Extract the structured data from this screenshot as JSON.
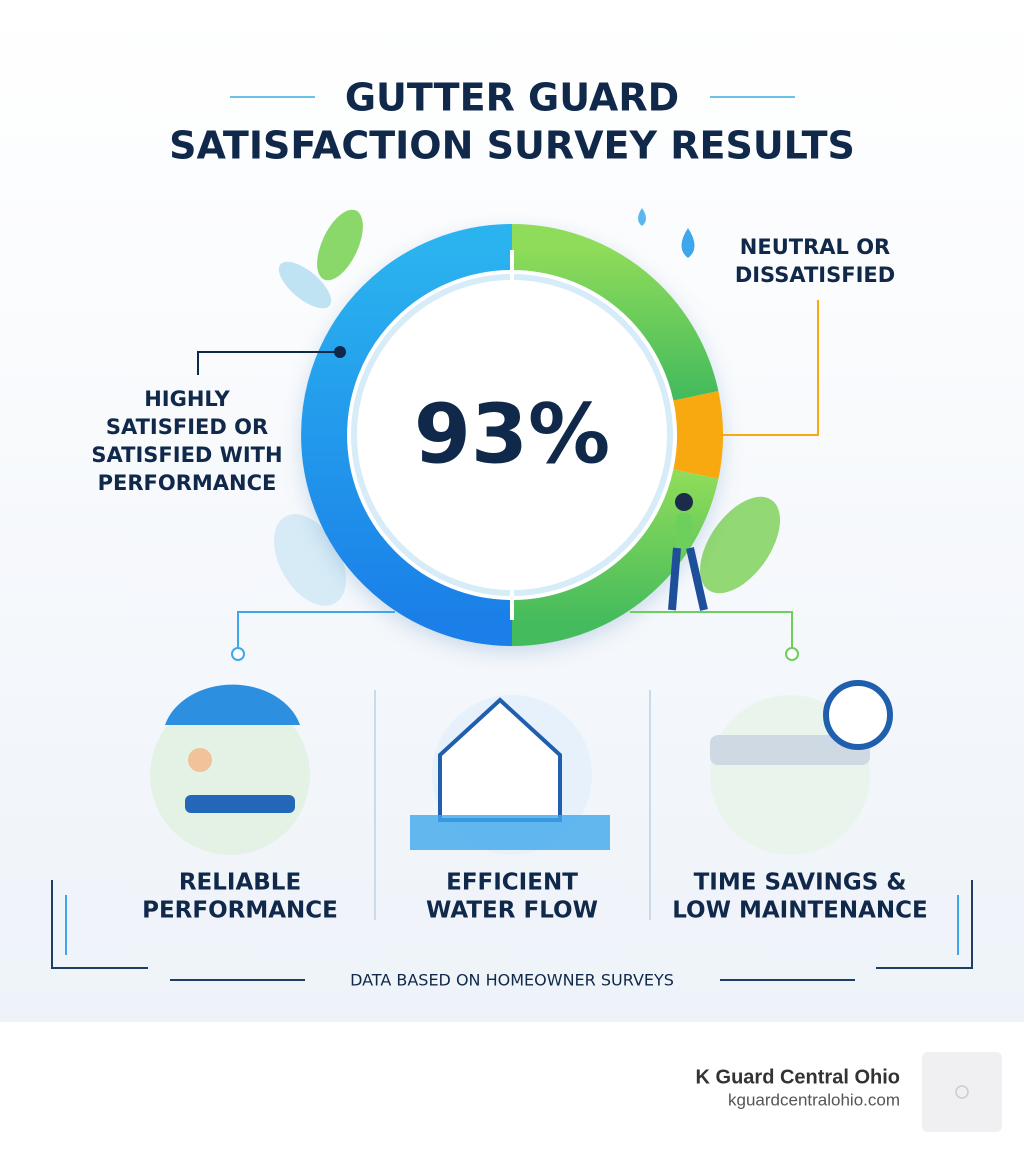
{
  "header": {
    "title_line1": "GUTTER GUARD",
    "title_line2": "SATISFACTION SURVEY RESULTS"
  },
  "donut": {
    "center_label": "93%",
    "left_label": [
      "HIGHLY",
      "SATISFIED OR",
      "SATISFIED WITH",
      "PERFORMANCE"
    ],
    "right_label": [
      "NEUTRAL OR",
      "DISSATISFIED"
    ]
  },
  "features": [
    {
      "lines": [
        "RELIABLE",
        "PERFORMANCE"
      ]
    },
    {
      "lines": [
        "EFFICIENT",
        "WATER FLOW"
      ]
    },
    {
      "lines": [
        "TIME SAVINGS &",
        "LOW MAINTENANCE"
      ]
    }
  ],
  "footnote": "DATA BASED ON HOMEOWNER SURVEYS",
  "brand": {
    "name": "K Guard Central Ohio",
    "url": "kguardcentralohio.com"
  }
}
